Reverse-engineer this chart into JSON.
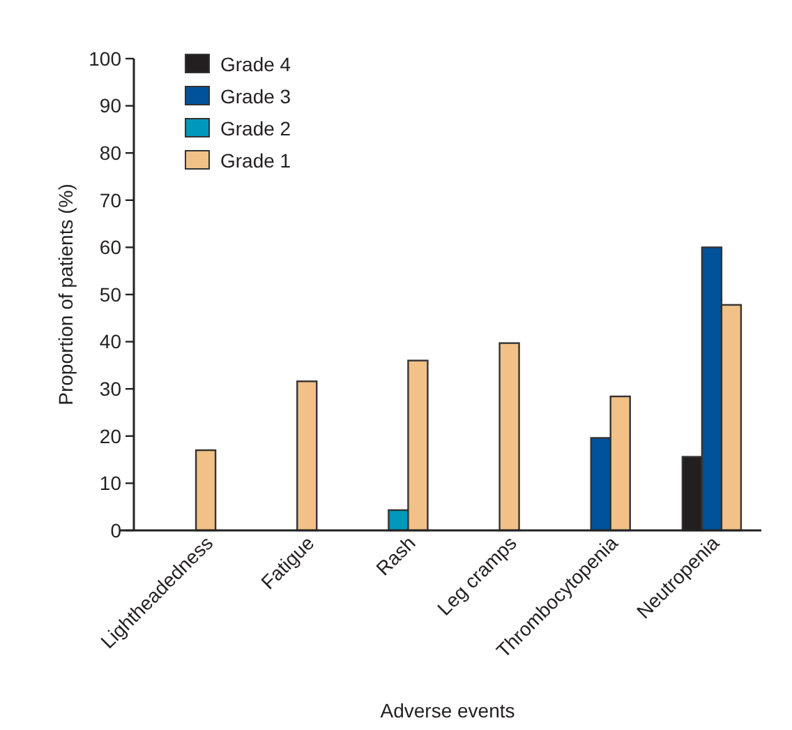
{
  "chart_data": {
    "type": "bar",
    "xlabel": "Adverse events",
    "ylabel": "Proportion of patients (%)",
    "categories": [
      "Lightheadedness",
      "Fatigue",
      "Rash",
      "Leg cramps",
      "Thrombocytopenia",
      "Neutropenia"
    ],
    "series": [
      {
        "name": "Grade 4",
        "color": "#231f20",
        "values": [
          null,
          null,
          null,
          null,
          null,
          15.6
        ]
      },
      {
        "name": "Grade 3",
        "color": "#00539b",
        "values": [
          null,
          null,
          null,
          null,
          19.6,
          60
        ]
      },
      {
        "name": "Grade 2",
        "color": "#0098bc",
        "values": [
          null,
          null,
          4.3,
          null,
          null,
          null
        ]
      },
      {
        "name": "Grade 1",
        "color": "#f2c187",
        "values": [
          17,
          31.6,
          36,
          39.7,
          28.4,
          47.8
        ]
      }
    ],
    "ylim": [
      0,
      100
    ],
    "yticks": [
      0,
      10,
      20,
      30,
      40,
      50,
      60,
      70,
      80,
      90,
      100
    ],
    "grid": false,
    "legend": "top left"
  }
}
